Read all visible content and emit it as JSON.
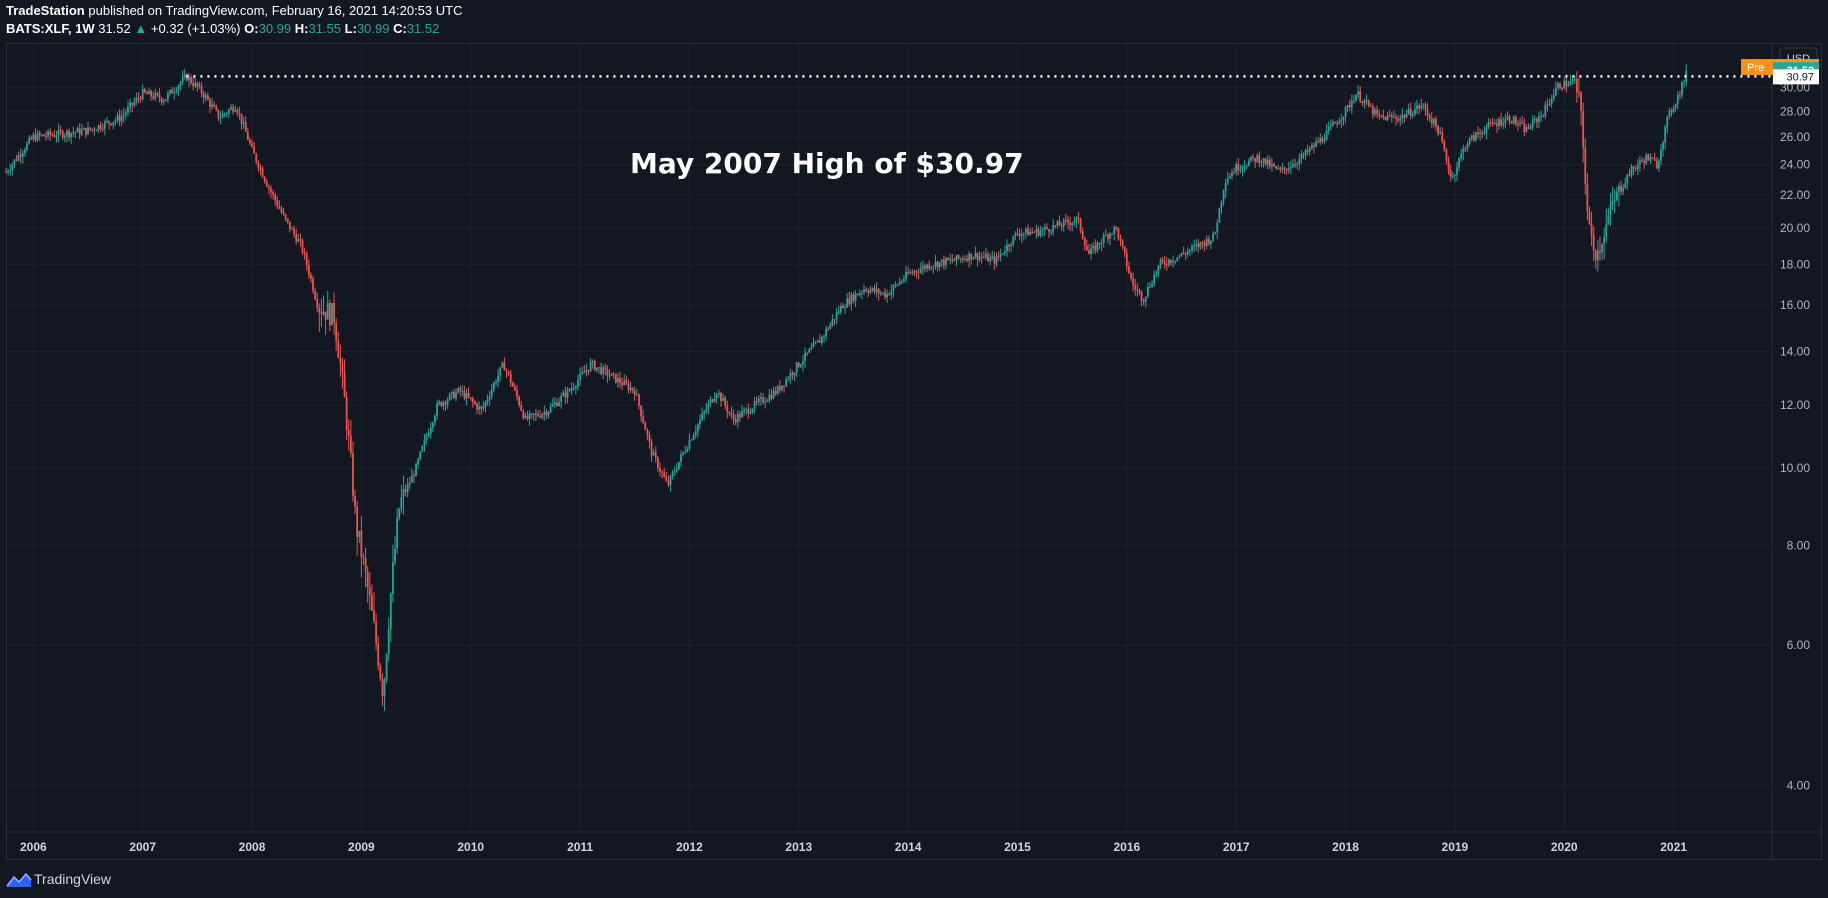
{
  "header": {
    "publisher": "TradeStation",
    "published_text": "published on TradingView.com, February 16, 2021 14:20:53 UTC",
    "symbol": "BATS:XLF, 1W",
    "last": "31.52",
    "change": "+0.32 (+1.03%)",
    "o_label": "O:",
    "o": "30.99",
    "h_label": "H:",
    "h": "31.55",
    "l_label": "L:",
    "l": "30.99",
    "c_label": "C:",
    "c": "31.52"
  },
  "footer": {
    "brand": "TradingView"
  },
  "currency_label": "USD",
  "price_tags": {
    "pre_label": "Pre",
    "pre_value": "31.81",
    "last_value": "31.52",
    "level_value": "30.97"
  },
  "annotation": "May 2007 High of $30.97",
  "colors": {
    "background": "#131722",
    "up": "#26a69a",
    "down": "#ef5350",
    "grid": "#1e222d",
    "pre_tag": "#f7931a"
  },
  "chart_data": {
    "type": "candlestick",
    "title": "BATS:XLF, 1W",
    "ylabel": "USD",
    "yscale": "log",
    "ylim": [
      3.5,
      34
    ],
    "xlim": [
      2005.75,
      2021.9
    ],
    "y_ticks": [
      "4.00",
      "6.00",
      "8.00",
      "10.00",
      "12.00",
      "14.00",
      "16.00",
      "18.00",
      "20.00",
      "22.00",
      "24.00",
      "26.00",
      "28.00",
      "30.00"
    ],
    "x_ticks": [
      "2006",
      "2007",
      "2008",
      "2009",
      "2010",
      "2011",
      "2012",
      "2013",
      "2014",
      "2015",
      "2016",
      "2017",
      "2018",
      "2019",
      "2020",
      "2021"
    ],
    "reference_line": {
      "label": "May 2007 High of $30.97",
      "value": 30.97,
      "start": 2007.4
    },
    "price_path": [
      [
        2005.75,
        23.5
      ],
      [
        2006.0,
        26.0
      ],
      [
        2006.3,
        26.3
      ],
      [
        2006.5,
        26.5
      ],
      [
        2006.8,
        27.5
      ],
      [
        2007.0,
        29.5
      ],
      [
        2007.2,
        29.0
      ],
      [
        2007.4,
        30.97
      ],
      [
        2007.55,
        29.5
      ],
      [
        2007.7,
        27.5
      ],
      [
        2007.85,
        28.5
      ],
      [
        2008.0,
        25.0
      ],
      [
        2008.15,
        22.5
      ],
      [
        2008.3,
        20.5
      ],
      [
        2008.45,
        19.0
      ],
      [
        2008.6,
        16.0
      ],
      [
        2008.75,
        15.5
      ],
      [
        2008.85,
        12.0
      ],
      [
        2008.95,
        8.5
      ],
      [
        2009.1,
        6.5
      ],
      [
        2009.2,
        5.2
      ],
      [
        2009.35,
        9.0
      ],
      [
        2009.5,
        10.0
      ],
      [
        2009.7,
        12.0
      ],
      [
        2009.9,
        12.5
      ],
      [
        2010.1,
        11.8
      ],
      [
        2010.3,
        13.5
      ],
      [
        2010.5,
        11.5
      ],
      [
        2010.7,
        11.8
      ],
      [
        2010.9,
        12.5
      ],
      [
        2011.1,
        13.5
      ],
      [
        2011.3,
        13.0
      ],
      [
        2011.5,
        12.5
      ],
      [
        2011.65,
        10.5
      ],
      [
        2011.8,
        9.5
      ],
      [
        2011.95,
        10.5
      ],
      [
        2012.1,
        11.5
      ],
      [
        2012.25,
        12.5
      ],
      [
        2012.4,
        11.5
      ],
      [
        2012.6,
        12.0
      ],
      [
        2012.8,
        12.5
      ],
      [
        2013.0,
        13.5
      ],
      [
        2013.2,
        14.5
      ],
      [
        2013.4,
        16.0
      ],
      [
        2013.6,
        16.8
      ],
      [
        2013.8,
        16.5
      ],
      [
        2014.0,
        17.5
      ],
      [
        2014.2,
        18.0
      ],
      [
        2014.4,
        18.2
      ],
      [
        2014.6,
        18.5
      ],
      [
        2014.8,
        18.2
      ],
      [
        2015.0,
        19.7
      ],
      [
        2015.2,
        19.8
      ],
      [
        2015.4,
        20.2
      ],
      [
        2015.55,
        20.5
      ],
      [
        2015.65,
        18.5
      ],
      [
        2015.8,
        19.5
      ],
      [
        2015.9,
        20.0
      ],
      [
        2016.05,
        17.0
      ],
      [
        2016.15,
        16.3
      ],
      [
        2016.3,
        18.0
      ],
      [
        2016.5,
        18.5
      ],
      [
        2016.65,
        19.0
      ],
      [
        2016.8,
        19.5
      ],
      [
        2016.9,
        23.0
      ],
      [
        2017.0,
        23.8
      ],
      [
        2017.2,
        24.5
      ],
      [
        2017.4,
        23.5
      ],
      [
        2017.6,
        24.5
      ],
      [
        2017.8,
        26.0
      ],
      [
        2018.0,
        28.0
      ],
      [
        2018.1,
        29.5
      ],
      [
        2018.3,
        27.5
      ],
      [
        2018.5,
        27.5
      ],
      [
        2018.7,
        28.5
      ],
      [
        2018.85,
        26.5
      ],
      [
        2018.97,
        23.0
      ],
      [
        2019.1,
        25.5
      ],
      [
        2019.3,
        26.8
      ],
      [
        2019.5,
        27.5
      ],
      [
        2019.65,
        26.5
      ],
      [
        2019.8,
        27.8
      ],
      [
        2019.95,
        30.2
      ],
      [
        2020.1,
        30.5
      ],
      [
        2020.15,
        28.0
      ],
      [
        2020.22,
        20.0
      ],
      [
        2020.3,
        18.5
      ],
      [
        2020.45,
        21.5
      ],
      [
        2020.6,
        23.5
      ],
      [
        2020.75,
        24.5
      ],
      [
        2020.85,
        24.0
      ],
      [
        2020.95,
        27.5
      ],
      [
        2021.05,
        29.5
      ],
      [
        2021.13,
        31.52
      ]
    ]
  }
}
